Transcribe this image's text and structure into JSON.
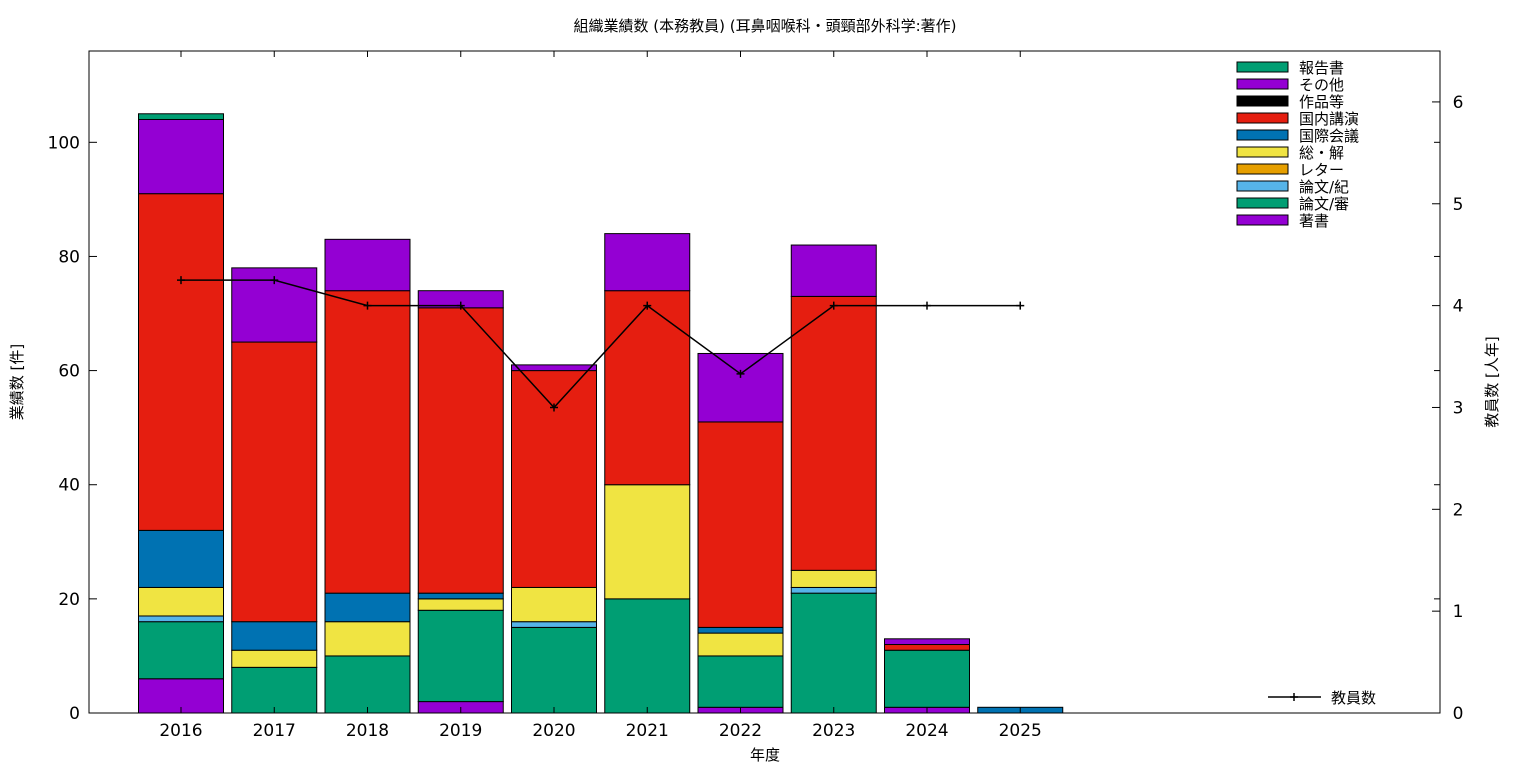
{
  "chart_data": {
    "type": "bar",
    "stacked": true,
    "title": "組織業績数 (本務教員) (耳鼻咽喉科・頭頸部外科学:著作)",
    "xlabel": "年度",
    "ylabel": "業績数 [件]",
    "y2label": "教員数 [人年]",
    "ylim": [
      0,
      116
    ],
    "y2lim": [
      0,
      6.5
    ],
    "yticks": [
      "0",
      "20",
      "40",
      "60",
      "80",
      "100"
    ],
    "y2ticks": [
      "0",
      "1",
      "2",
      "3",
      "4",
      "5",
      "6"
    ],
    "categories": [
      "2016",
      "2017",
      "2018",
      "2019",
      "2020",
      "2021",
      "2022",
      "2023",
      "2024",
      "2025"
    ],
    "legend_position": "top-right",
    "series": [
      {
        "name": "著書",
        "color": "#9400d3",
        "values": [
          6,
          0,
          0,
          2,
          0,
          0,
          1,
          0,
          1,
          0
        ]
      },
      {
        "name": "論文/審",
        "color": "#009e73",
        "values": [
          10,
          8,
          10,
          16,
          15,
          20,
          9,
          21,
          10,
          0
        ]
      },
      {
        "name": "論文/紀",
        "color": "#56b4e9",
        "values": [
          1,
          0,
          0,
          0,
          1,
          0,
          0,
          1,
          0,
          0
        ]
      },
      {
        "name": "レター",
        "color": "#e69f00",
        "values": [
          0,
          0,
          0,
          0,
          0,
          0,
          0,
          0,
          0,
          0
        ]
      },
      {
        "name": "総・解",
        "color": "#f0e442",
        "values": [
          5,
          3,
          6,
          2,
          6,
          20,
          4,
          3,
          0,
          0
        ]
      },
      {
        "name": "国際会議",
        "color": "#0072b2",
        "values": [
          10,
          5,
          5,
          1,
          0,
          0,
          1,
          0,
          0,
          1
        ]
      },
      {
        "name": "国内講演",
        "color": "#e51e10",
        "values": [
          59,
          49,
          53,
          50,
          38,
          34,
          36,
          48,
          1,
          0
        ]
      },
      {
        "name": "作品等",
        "color": "#000000",
        "values": [
          0,
          0,
          0,
          0,
          0,
          0,
          0,
          0,
          0,
          0
        ]
      },
      {
        "name": "その他",
        "color": "#9400d3",
        "values": [
          13,
          13,
          9,
          3,
          1,
          10,
          12,
          9,
          1,
          0
        ]
      },
      {
        "name": "報告書",
        "color": "#009e73",
        "values": [
          1,
          0,
          0,
          0,
          0,
          0,
          0,
          0,
          0,
          0
        ]
      }
    ],
    "line_series": {
      "name": "教員数",
      "color": "#000000",
      "axis": "y2",
      "values": [
        4.25,
        4.25,
        4.0,
        4.0,
        3.0,
        4.0,
        3.33,
        4.0,
        4.0,
        4.0
      ]
    }
  }
}
